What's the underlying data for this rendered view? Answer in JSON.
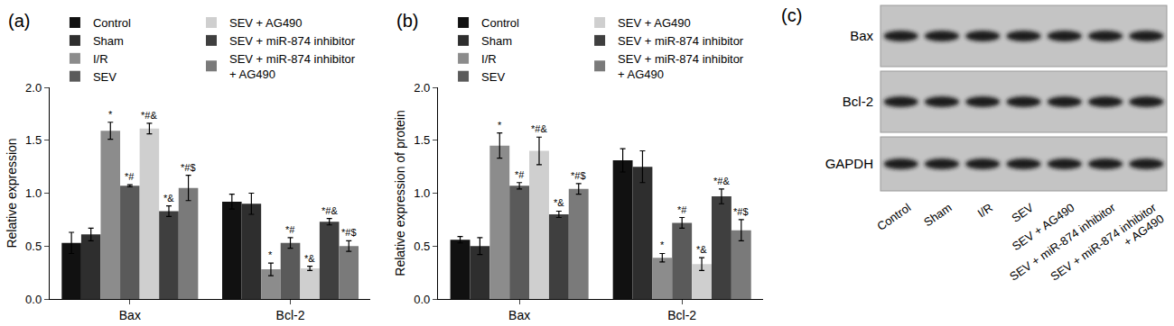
{
  "chart_data": [
    {
      "type": "bar",
      "title": "(a)",
      "y_label": "Relative expression",
      "grid": false,
      "categories": [
        "Bax",
        "Bcl-2"
      ],
      "ylim": [
        0,
        2
      ],
      "yticks": [
        {
          "value": 0,
          "label": "0.0"
        },
        {
          "value": 0.5,
          "label": "0.5"
        },
        {
          "value": 1,
          "label": "1.0"
        },
        {
          "value": 1.5,
          "label": "1.5"
        },
        {
          "value": 2,
          "label": "2.0"
        }
      ],
      "series": [
        {
          "name": "Control",
          "color": "#111111",
          "values": [
            0.53,
            0.92
          ],
          "error": [
            0.1,
            0.07
          ],
          "annotations": [
            null,
            null
          ]
        },
        {
          "name": "Sham",
          "color": "#2e2e2e",
          "values": [
            0.61,
            0.9
          ],
          "error": [
            0.06,
            0.1
          ],
          "annotations": [
            null,
            null
          ]
        },
        {
          "name": "I/R",
          "color": "#8c8c8c",
          "values": [
            1.59,
            0.28
          ],
          "error": [
            0.08,
            0.06
          ],
          "annotations": [
            "*",
            "*"
          ]
        },
        {
          "name": "SEV",
          "color": "#5a5a5a",
          "values": [
            1.07,
            0.53
          ],
          "error": [
            0.01,
            0.05
          ],
          "annotations": [
            "*#",
            "*#"
          ]
        },
        {
          "name": "SEV + AG490",
          "color": "#cfcfcf",
          "values": [
            1.61,
            0.29
          ],
          "error": [
            0.05,
            0.02
          ],
          "annotations": [
            "*#&",
            "*&"
          ]
        },
        {
          "name": "SEV + miR-874 inhibitor",
          "color": "#3f3f3f",
          "values": [
            0.83,
            0.73
          ],
          "error": [
            0.05,
            0.03
          ],
          "annotations": [
            "*&",
            "*#&"
          ]
        },
        {
          "name": "SEV + miR-874 inhibitor + AG490",
          "color": "#7a7a7a",
          "values": [
            1.05,
            0.5
          ],
          "error": [
            0.12,
            0.05
          ],
          "annotations": [
            "*#$",
            "*#$"
          ]
        }
      ]
    },
    {
      "type": "bar",
      "title": "(b)",
      "y_label": "Relative expression of protein",
      "grid": false,
      "categories": [
        "Bax",
        "Bcl-2"
      ],
      "ylim": [
        0,
        2
      ],
      "yticks": [
        {
          "value": 0,
          "label": "0.0"
        },
        {
          "value": 0.5,
          "label": "0.5"
        },
        {
          "value": 1,
          "label": "1.0"
        },
        {
          "value": 1.5,
          "label": "1.5"
        },
        {
          "value": 2,
          "label": "2.0"
        }
      ],
      "series": [
        {
          "name": "Control",
          "color": "#111111",
          "values": [
            0.56,
            1.31
          ],
          "error": [
            0.03,
            0.11
          ],
          "annotations": [
            null,
            null
          ]
        },
        {
          "name": "Sham",
          "color": "#2e2e2e",
          "values": [
            0.5,
            1.25
          ],
          "error": [
            0.08,
            0.15
          ],
          "annotations": [
            null,
            null
          ]
        },
        {
          "name": "I/R",
          "color": "#8c8c8c",
          "values": [
            1.45,
            0.39
          ],
          "error": [
            0.12,
            0.04
          ],
          "annotations": [
            "*",
            "*"
          ]
        },
        {
          "name": "SEV",
          "color": "#5a5a5a",
          "values": [
            1.07,
            0.72
          ],
          "error": [
            0.03,
            0.05
          ],
          "annotations": [
            "*#",
            "*#"
          ]
        },
        {
          "name": "SEV + AG490",
          "color": "#cfcfcf",
          "values": [
            1.4,
            0.33
          ],
          "error": [
            0.13,
            0.06
          ],
          "annotations": [
            "*#&",
            "*&"
          ]
        },
        {
          "name": "SEV + miR-874 inhibitor",
          "color": "#3f3f3f",
          "values": [
            0.8,
            0.97
          ],
          "error": [
            0.03,
            0.07
          ],
          "annotations": [
            "*&",
            "*#&"
          ]
        },
        {
          "name": "SEV + miR-874 inhibitor + AG490",
          "color": "#7a7a7a",
          "values": [
            1.04,
            0.65
          ],
          "error": [
            0.05,
            0.1
          ],
          "annotations": [
            "*#$",
            "*#$"
          ]
        }
      ]
    }
  ],
  "blot": {
    "title": "(c)",
    "rows": [
      "Bax",
      "Bcl-2",
      "GAPDH"
    ],
    "lanes": [
      "Control",
      "Sham",
      "I/R",
      "SEV",
      "SEV + AG490",
      "SEV + miR-874 inhibitor",
      "SEV + miR-874 inhibitor + AG490"
    ]
  }
}
